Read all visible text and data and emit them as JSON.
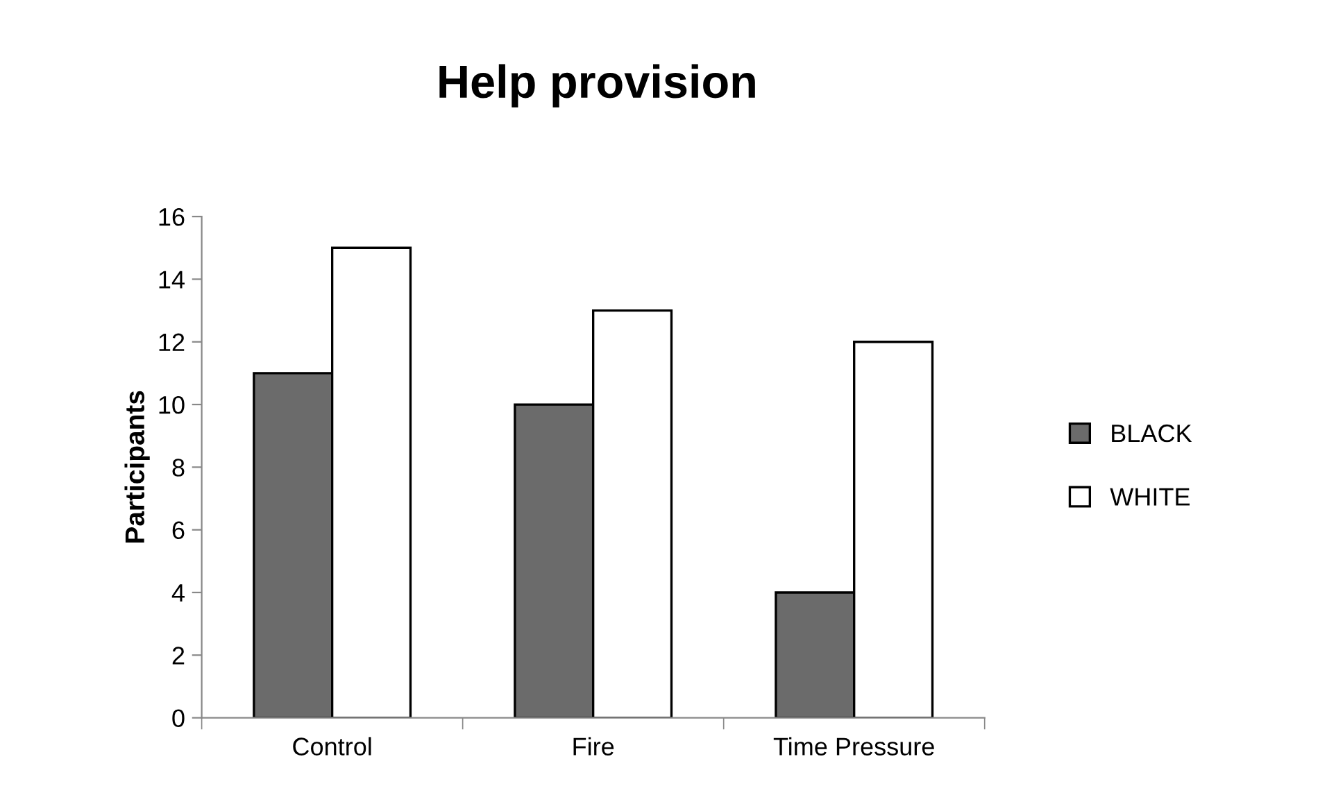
{
  "chart_data": {
    "type": "bar",
    "title": "Help provision",
    "ylabel": "Participants",
    "categories": [
      "Control",
      "Fire",
      "Time Pressure"
    ],
    "series": [
      {
        "name": "BLACK",
        "color": "#6b6b6b",
        "values": [
          11,
          10,
          4
        ]
      },
      {
        "name": "WHITE",
        "color": "#ffffff",
        "values": [
          15,
          13,
          12
        ]
      }
    ],
    "ylim": [
      0,
      16
    ],
    "yticks": [
      0,
      2,
      4,
      6,
      8,
      10,
      12,
      14,
      16
    ],
    "grid": false,
    "legend": "right"
  }
}
